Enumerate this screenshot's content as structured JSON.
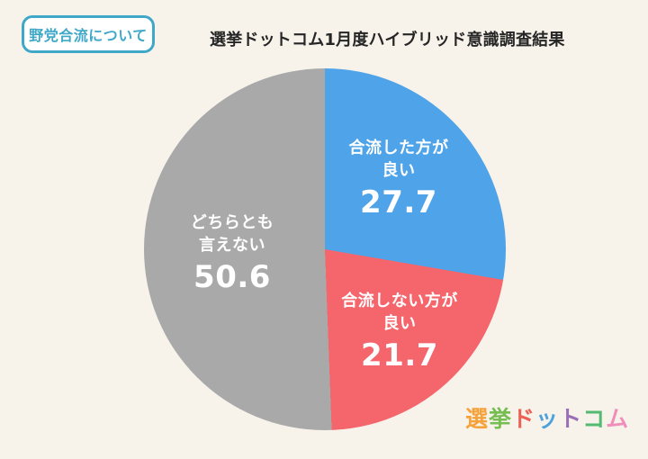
{
  "header": {
    "badge_label": "野党合流について",
    "title": "選挙ドットコム1月度ハイブリッド意識調査結果"
  },
  "chart_data": {
    "type": "pie",
    "title": "選挙ドットコム1月度ハイブリッド意識調査結果",
    "topic": "野党合流について",
    "start_angle_deg": 0,
    "direction": "clockwise",
    "slices": [
      {
        "label": "合流した方が良い",
        "label_lines": [
          "合流した方が",
          "良い"
        ],
        "value": 27.7,
        "color": "#4FA3E8"
      },
      {
        "label": "合流しない方が良い",
        "label_lines": [
          "合流しない方が",
          "良い"
        ],
        "value": 21.7,
        "color": "#F4656C"
      },
      {
        "label": "どちらとも言えない",
        "label_lines": [
          "どちらとも",
          "言えない"
        ],
        "value": 50.6,
        "color": "#A9A9AA"
      }
    ]
  },
  "logo": {
    "text": "選挙ドットコム",
    "chars": [
      {
        "char": "選",
        "color": "#F5A23C"
      },
      {
        "char": "挙",
        "color": "#76BD52"
      },
      {
        "char": "ド",
        "color": "#EB6054"
      },
      {
        "char": "ッ",
        "color": "#4CA2DC"
      },
      {
        "char": "ト",
        "color": "#9B6FB7"
      },
      {
        "char": "コ",
        "color": "#55BA71"
      },
      {
        "char": "ム",
        "color": "#F08EB9"
      }
    ]
  },
  "colors": {
    "background": "#F7F3EB",
    "badge_accent": "#3FA8C8",
    "title_text": "#262626",
    "label_text": "#FFFFFF"
  }
}
